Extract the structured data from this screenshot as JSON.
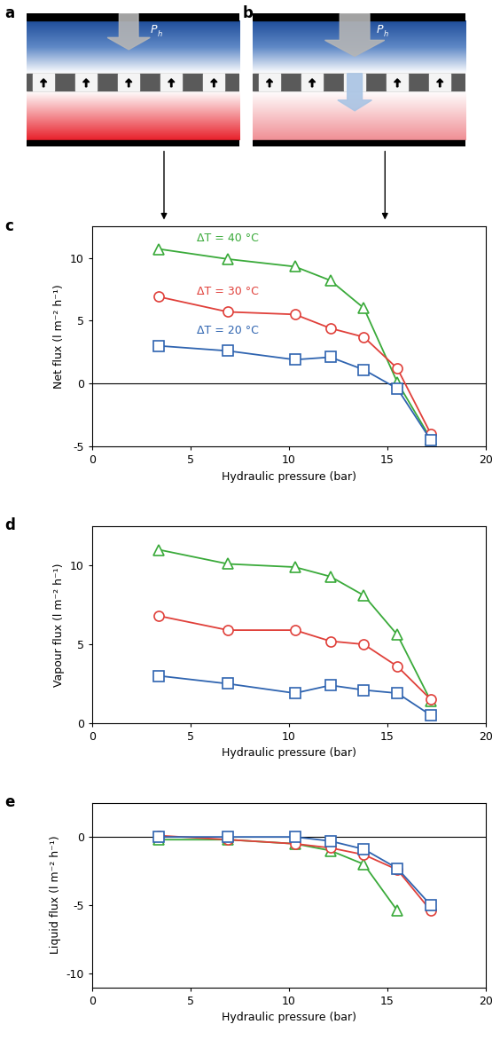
{
  "diagrams": [
    {
      "panel": "a",
      "arrow_label": "P",
      "arrow_label_sub": "h"
    },
    {
      "panel": "b",
      "arrow_label": "P",
      "arrow_label_sub": "h"
    }
  ],
  "chart_data": [
    {
      "type": "line",
      "annotations": [
        "c"
      ],
      "x_label": "Hydraulic pressure (bar)",
      "y_label": "Net flux (l m⁻² h⁻¹)",
      "x": [
        3.4,
        6.9,
        10.3,
        12.1,
        13.8,
        15.5,
        17.2
      ],
      "series": [
        {
          "name": "ΔT = 40 °C",
          "color": "#3aaa3a",
          "marker": "triangle",
          "values": [
            10.7,
            9.9,
            9.3,
            8.2,
            6.0,
            0.1,
            -4.4
          ]
        },
        {
          "name": "ΔT = 30 °C",
          "color": "#e0403a",
          "marker": "circle",
          "values": [
            6.9,
            5.7,
            5.5,
            4.4,
            3.7,
            1.2,
            -4.0
          ]
        },
        {
          "name": "ΔT = 20 °C",
          "color": "#2f64b0",
          "marker": "square",
          "values": [
            3.0,
            2.6,
            1.9,
            2.1,
            1.1,
            -0.4,
            -4.5
          ]
        }
      ],
      "xlim": [
        0,
        20
      ],
      "xticks": [
        0,
        5,
        10,
        15,
        20
      ],
      "ylim": [
        -5,
        12.5
      ],
      "yticks": [
        -5,
        0,
        5,
        10
      ],
      "hlines": [
        0
      ]
    },
    {
      "type": "line",
      "annotations": [
        "d"
      ],
      "x_label": "Hydraulic pressure (bar)",
      "y_label": "Vapour flux (l m⁻² h⁻¹)",
      "x": [
        3.4,
        6.9,
        10.3,
        12.1,
        13.8,
        15.5,
        17.2
      ],
      "series": [
        {
          "color": "#3aaa3a",
          "marker": "triangle",
          "values": [
            11.0,
            10.1,
            9.9,
            9.3,
            8.1,
            5.6,
            1.4
          ]
        },
        {
          "color": "#e0403a",
          "marker": "circle",
          "values": [
            6.8,
            5.9,
            5.9,
            5.2,
            5.0,
            3.6,
            1.5
          ]
        },
        {
          "color": "#2f64b0",
          "marker": "square",
          "values": [
            3.0,
            2.5,
            1.9,
            2.4,
            2.1,
            1.9,
            0.5
          ]
        }
      ],
      "xlim": [
        0,
        20
      ],
      "xticks": [
        0,
        5,
        10,
        15,
        20
      ],
      "ylim": [
        0,
        12.5
      ],
      "yticks": [
        0,
        5,
        10
      ]
    },
    {
      "type": "line",
      "annotations": [
        "e"
      ],
      "x_label": "Hydraulic pressure (bar)",
      "y_label": "Liquid flux (l m⁻² h⁻¹)",
      "x": [
        3.4,
        6.9,
        10.3,
        12.1,
        13.8,
        15.5,
        17.2
      ],
      "series": [
        {
          "color": "#3aaa3a",
          "marker": "triangle",
          "values": [
            -0.2,
            -0.2,
            -0.5,
            -1.0,
            -2.0,
            -5.4,
            null
          ]
        },
        {
          "color": "#e0403a",
          "marker": "circle",
          "values": [
            0.1,
            -0.2,
            -0.5,
            -0.8,
            -1.3,
            -2.4,
            -5.4
          ]
        },
        {
          "color": "#2f64b0",
          "marker": "square",
          "values": [
            0.0,
            0.0,
            0.0,
            -0.3,
            -0.9,
            -2.3,
            -5.0
          ]
        }
      ],
      "xlim": [
        0,
        20
      ],
      "xticks": [
        0,
        5,
        10,
        15,
        20
      ],
      "ylim": [
        -11,
        2.5
      ],
      "yticks": [
        -10,
        -5,
        0
      ],
      "hlines": [
        0
      ]
    }
  ]
}
